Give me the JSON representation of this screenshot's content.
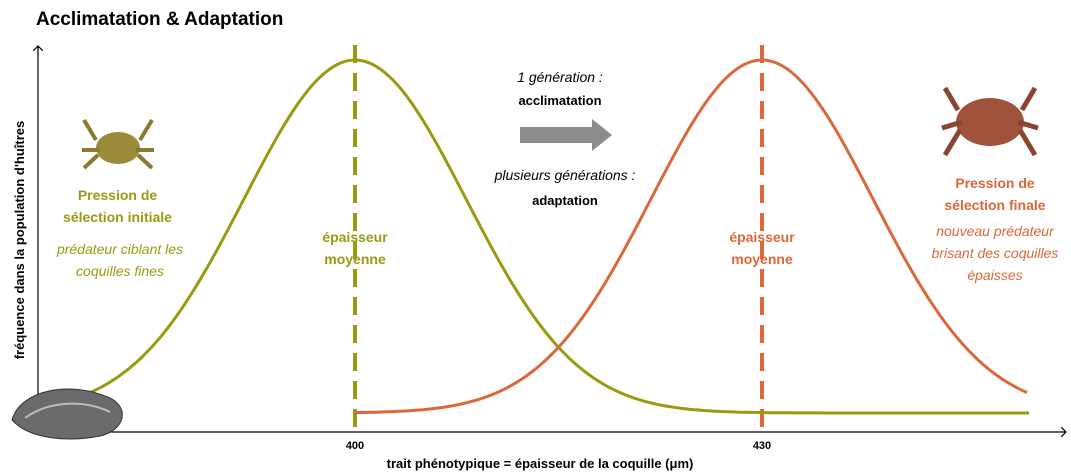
{
  "title": "Acclimatation & Adaptation",
  "y_axis_label": "fréquence dans la population d'huîtres",
  "x_axis_label": "trait phénotypique = épaisseur de la coquille (μm)",
  "x_tick_labels": [
    "400",
    "430"
  ],
  "initial": {
    "title": "Pression de sélection initiale",
    "description": "prédateur ciblant les coquilles fines",
    "mean_label": "épaisseur moyenne"
  },
  "final": {
    "title": "Pression de sélection finale",
    "description": "nouveau prédateur brisant des coquilles épaisses",
    "mean_label": "épaisseur moyenne"
  },
  "transition": {
    "one_generation": "1 génération :",
    "acclimatation": "acclimatation",
    "several_generations": "plusieurs générations :",
    "adaptation": "adaptation"
  }
}
